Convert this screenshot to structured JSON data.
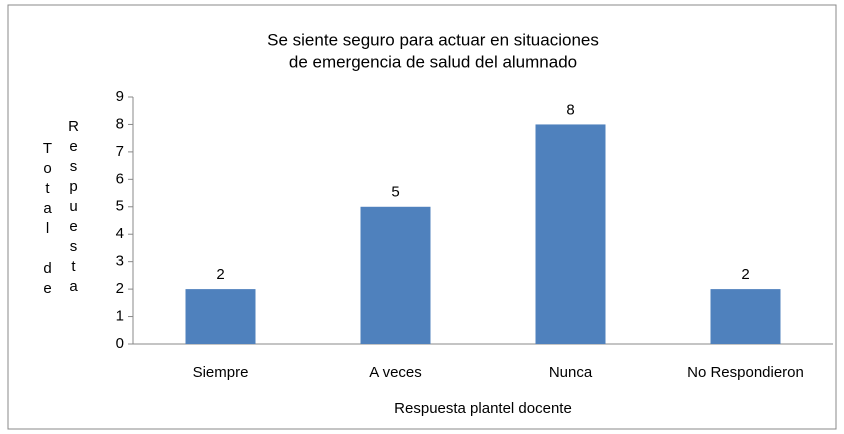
{
  "chart_data": {
    "type": "bar",
    "title": [
      "Se siente seguro para actuar en situaciones",
      "de emergencia de salud del alumnado"
    ],
    "ylabel": [
      "Total de",
      "Respuesta"
    ],
    "xlabel": "Respuesta plantel docente",
    "categories": [
      "Siempre",
      "A veces",
      "Nunca",
      "No Respondieron"
    ],
    "values": [
      2,
      5,
      8,
      2
    ],
    "color": "#4f81bd",
    "ylim": [
      0,
      9
    ],
    "yticks": [
      0,
      1,
      2,
      3,
      4,
      5,
      6,
      7,
      8,
      9
    ],
    "grid": false
  }
}
